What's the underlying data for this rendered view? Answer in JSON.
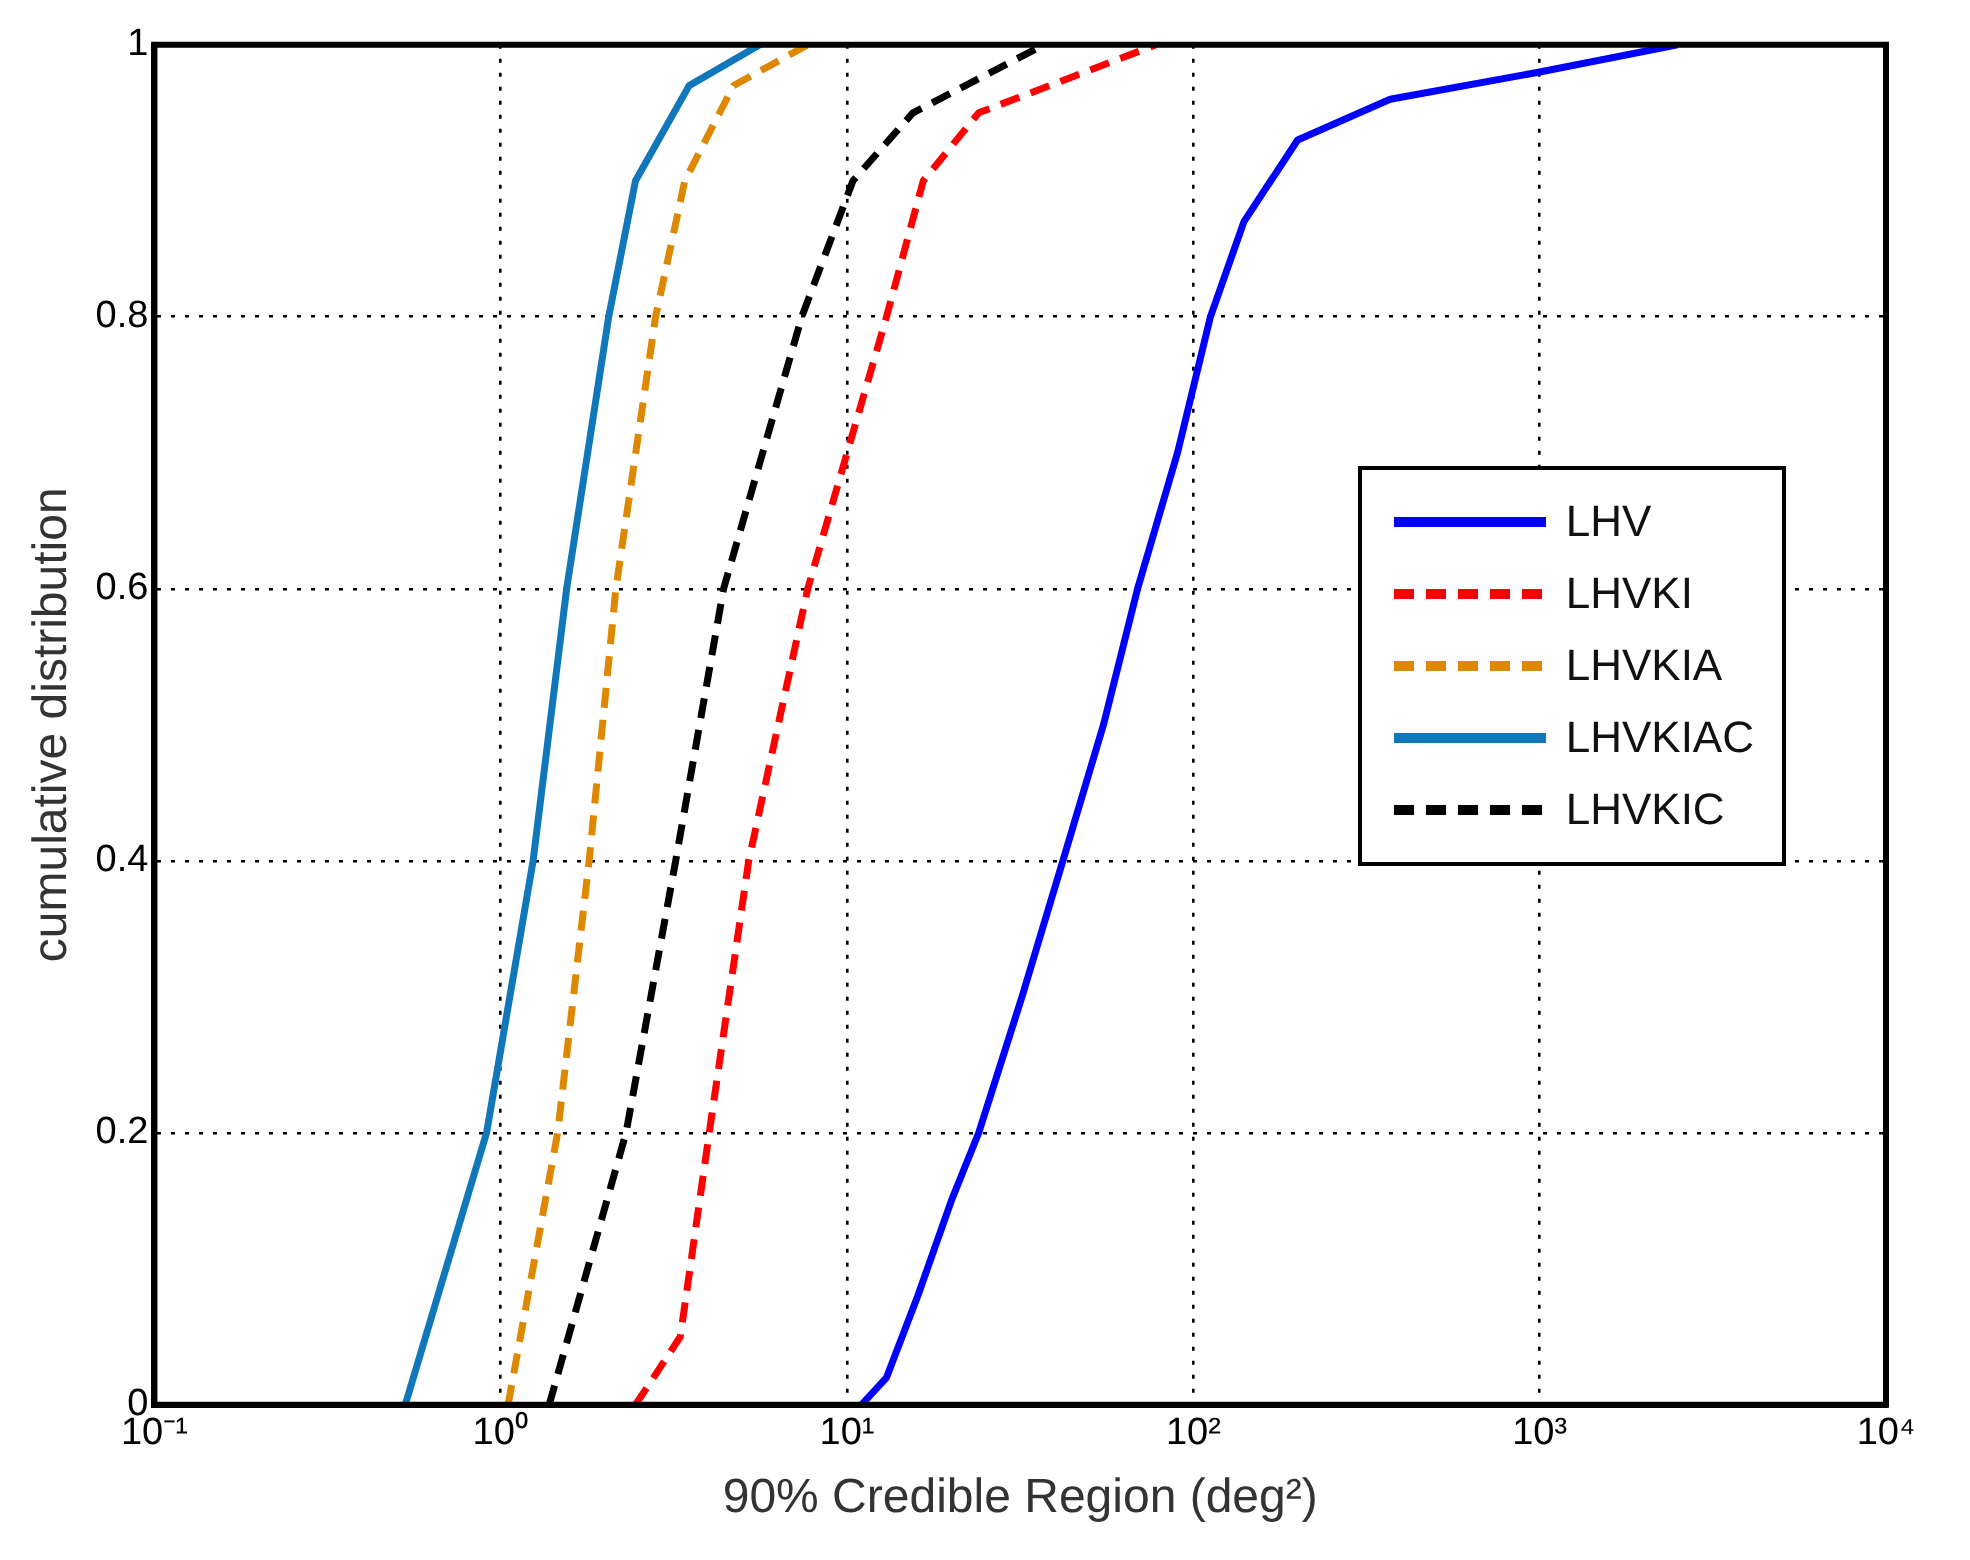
{
  "chart_data": {
    "type": "line",
    "xlabel": "90% Credible Region (deg²)",
    "ylabel": "cumulative distribution",
    "log": "x",
    "grid": true,
    "legend": "right",
    "marker": "none",
    "xlim": [
      0.1,
      10000
    ],
    "xticks": [
      {
        "value": 0.1,
        "label": "10⁻¹"
      },
      {
        "value": 1,
        "label": "10⁰"
      },
      {
        "value": 10,
        "label": "10¹"
      },
      {
        "value": 100,
        "label": "10²"
      },
      {
        "value": 1000,
        "label": "10³"
      },
      {
        "value": 10000,
        "label": "10⁴"
      }
    ],
    "ylim": [
      0,
      1
    ],
    "yticks": [
      0,
      0.2,
      0.4,
      0.6,
      0.8,
      1
    ],
    "series": [
      {
        "name": "LHV",
        "color": "#0000ff",
        "line_style": "solid",
        "x": [
          11,
          13,
          16,
          20,
          24,
          32,
          42,
          55,
          69,
          90,
          112,
          140,
          200,
          370,
          1000,
          2500
        ],
        "values": [
          0,
          0.02,
          0.08,
          0.15,
          0.2,
          0.3,
          0.4,
          0.5,
          0.6,
          0.7,
          0.8,
          0.87,
          0.93,
          0.96,
          0.98,
          1
        ]
      },
      {
        "name": "LHVKI",
        "color": "#ff0000",
        "line_style": "dashed",
        "x": [
          2.45,
          3.3,
          4,
          5.2,
          7.7,
          13,
          16.6,
          24,
          78
        ],
        "values": [
          0,
          0.05,
          0.2,
          0.4,
          0.6,
          0.8,
          0.9,
          0.95,
          1
        ]
      },
      {
        "name": "LHVKIA",
        "color": "#dd8800",
        "line_style": "dashed",
        "x": [
          1.05,
          1.46,
          1.8,
          2.15,
          2.8,
          3.4,
          4.7,
          7.7
        ],
        "values": [
          0,
          0.2,
          0.4,
          0.6,
          0.8,
          0.9,
          0.97,
          1
        ]
      },
      {
        "name": "LHVKIAC",
        "color": "#1177bb",
        "line_style": "solid",
        "x": [
          0.53,
          0.91,
          1.24,
          1.55,
          2.05,
          2.45,
          3.5,
          5.6
        ],
        "values": [
          0,
          0.2,
          0.4,
          0.6,
          0.8,
          0.9,
          0.97,
          1
        ]
      },
      {
        "name": "LHVKIC",
        "color": "#000000",
        "line_style": "dashed",
        "x": [
          1.38,
          2.3,
          3.2,
          4.4,
          7.4,
          10.4,
          15.5,
          37
        ],
        "values": [
          0,
          0.2,
          0.4,
          0.6,
          0.8,
          0.9,
          0.95,
          1
        ]
      }
    ]
  }
}
